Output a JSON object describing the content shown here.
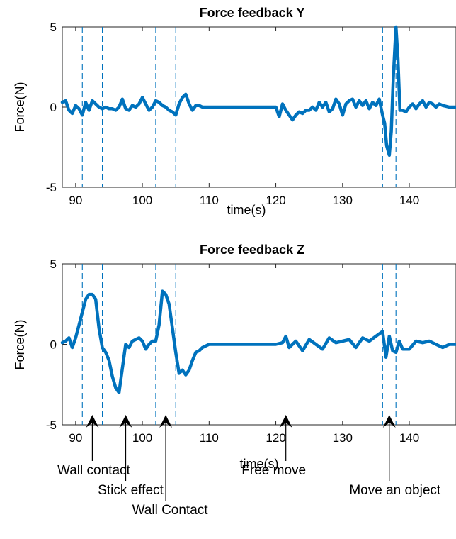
{
  "chart_data": [
    {
      "type": "line",
      "title": "Force feedback Y",
      "xlabel": "time(s)",
      "ylabel": "Force(N)",
      "xlim": [
        88,
        147
      ],
      "ylim": [
        -5,
        5
      ],
      "xticks": [
        90,
        100,
        110,
        120,
        130,
        140
      ],
      "yticks": [
        -5,
        0,
        5
      ],
      "xtick_labels": [
        "90",
        "100",
        "110",
        "120",
        "130",
        "140"
      ],
      "ytick_labels": [
        "-5",
        "0",
        "5"
      ],
      "grid": false,
      "line_color": "#0072BD",
      "vlines": [
        91,
        94,
        102,
        105,
        136,
        138
      ],
      "x": [
        88,
        88.5,
        89,
        89.5,
        90,
        90.5,
        91,
        91.5,
        92,
        92.5,
        93,
        93.5,
        94,
        94.5,
        95,
        95.5,
        96,
        96.5,
        97,
        97.5,
        98,
        98.5,
        99,
        99.5,
        100,
        100.5,
        101,
        101.5,
        102,
        102.5,
        103,
        103.5,
        104,
        104.5,
        105,
        105.5,
        106,
        106.5,
        107,
        107.5,
        108,
        108.5,
        109,
        109.5,
        110,
        112,
        114,
        116,
        118,
        120,
        120.5,
        121,
        121.5,
        122,
        122.5,
        123,
        123.5,
        124,
        124.5,
        125,
        125.5,
        126,
        126.5,
        127,
        127.5,
        128,
        128.5,
        129,
        129.5,
        130,
        130.5,
        131,
        131.5,
        132,
        132.5,
        133,
        133.5,
        134,
        134.5,
        135,
        135.5,
        136,
        136.3,
        136.6,
        137,
        137.3,
        137.6,
        138,
        138.3,
        138.6,
        139,
        139.5,
        140,
        140.5,
        141,
        141.5,
        142,
        142.5,
        143,
        143.5,
        144,
        144.5,
        145,
        146,
        147
      ],
      "y": [
        0.3,
        0.4,
        -0.2,
        -0.4,
        0.1,
        -0.1,
        -0.5,
        0.3,
        -0.2,
        0.4,
        0.2,
        0,
        -0.1,
        0,
        -0.1,
        -0.1,
        -0.2,
        0,
        0.5,
        -0.1,
        -0.2,
        0.1,
        0,
        0.2,
        0.6,
        0.2,
        -0.2,
        0,
        0.4,
        0.3,
        0.1,
        0,
        -0.2,
        -0.3,
        -0.5,
        0.2,
        0.6,
        0.8,
        0.2,
        -0.2,
        0.1,
        0.1,
        0,
        0,
        0,
        0,
        0,
        0,
        0,
        0,
        -0.6,
        0.2,
        -0.2,
        -0.5,
        -0.8,
        -0.5,
        -0.3,
        -0.4,
        -0.2,
        -0.2,
        0,
        -0.2,
        0.3,
        0,
        0.3,
        -0.3,
        -0.1,
        0.5,
        0.2,
        -0.5,
        0.2,
        0.4,
        0.5,
        0,
        0.4,
        0.1,
        0.4,
        -0.1,
        0.3,
        0.1,
        0.5,
        -0.5,
        -1.0,
        -2.4,
        -3.0,
        -1.5,
        1.8,
        5.0,
        3.0,
        -0.2,
        -0.2,
        -0.3,
        0,
        0.2,
        -0.1,
        0.2,
        0.4,
        0,
        0.3,
        0.2,
        0,
        0.2,
        0.1,
        0,
        0
      ]
    },
    {
      "type": "line",
      "title": "Force feedback Z",
      "xlabel": "time(s)",
      "ylabel": "Force(N)",
      "xlim": [
        88,
        147
      ],
      "ylim": [
        -5,
        5
      ],
      "xticks": [
        90,
        100,
        110,
        120,
        130,
        140
      ],
      "yticks": [
        -5,
        0,
        5
      ],
      "xtick_labels": [
        "90",
        "100",
        "110",
        "120",
        "130",
        "140"
      ],
      "ytick_labels": [
        "-5",
        "0",
        "5"
      ],
      "grid": false,
      "line_color": "#0072BD",
      "vlines": [
        91,
        94,
        102,
        105,
        136,
        138
      ],
      "x": [
        88,
        88.5,
        89,
        89.5,
        90,
        90.5,
        91,
        91.5,
        92,
        92.5,
        93,
        93.5,
        94,
        94.5,
        95,
        95.5,
        96,
        96.5,
        97,
        97.5,
        98,
        98.5,
        99,
        99.5,
        100,
        100.5,
        101,
        101.5,
        102,
        102.5,
        103,
        103.5,
        104,
        104.5,
        105,
        105.5,
        106,
        106.5,
        107,
        107.5,
        108,
        108.5,
        109,
        110,
        112,
        114,
        116,
        118,
        120,
        121,
        121.5,
        122,
        123,
        124,
        125,
        126,
        127,
        128,
        129,
        130,
        131,
        132,
        133,
        134,
        135,
        136,
        136.5,
        137,
        137.5,
        138,
        138.5,
        139,
        140,
        141,
        142,
        143,
        144,
        145,
        146,
        147
      ],
      "y": [
        0.1,
        0.2,
        0.4,
        -0.2,
        0.4,
        1.2,
        2.0,
        2.8,
        3.1,
        3.1,
        2.8,
        1.0,
        -0.2,
        -0.5,
        -1.0,
        -2.0,
        -2.7,
        -3.0,
        -1.5,
        0,
        -0.2,
        0.2,
        0.3,
        0.4,
        0.2,
        -0.3,
        0,
        0.2,
        0.2,
        1.2,
        3.3,
        3.1,
        2.5,
        1.0,
        -0.5,
        -1.8,
        -1.6,
        -1.9,
        -1.6,
        -1.0,
        -0.5,
        -0.4,
        -0.2,
        0,
        0,
        0,
        0,
        0,
        0,
        0.1,
        0.5,
        -0.2,
        0.2,
        -0.4,
        0.3,
        0,
        -0.3,
        0.4,
        0.1,
        0.2,
        0.3,
        -0.2,
        0.4,
        0.2,
        0.5,
        0.8,
        -0.8,
        0.5,
        -0.4,
        -0.5,
        0.2,
        -0.3,
        -0.3,
        0.2,
        0.1,
        0.2,
        0,
        -0.2,
        0,
        0
      ]
    }
  ],
  "annotations": [
    {
      "text": "Wall contact",
      "x": 92.5
    },
    {
      "text": "Stick effect",
      "x": 97.5
    },
    {
      "text": "Wall Contact",
      "x": 103.5
    },
    {
      "text": "Free move",
      "x": 121.5
    },
    {
      "text": "Move an object",
      "x": 137
    }
  ]
}
